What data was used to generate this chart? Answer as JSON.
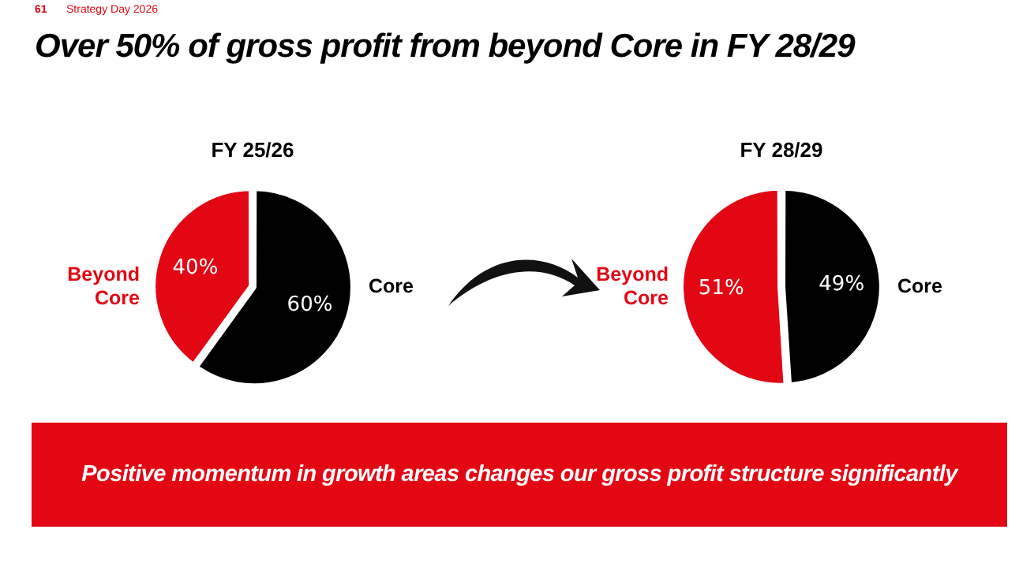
{
  "chart_data": [
    {
      "type": "pie",
      "title": "FY 25/26",
      "categories": [
        "Beyond Core",
        "Core"
      ],
      "values": [
        40,
        60
      ],
      "colors": [
        "#e30613",
        "#000000"
      ],
      "value_labels": [
        "40%",
        "60%"
      ],
      "legend": false,
      "annotations": [
        "61",
        "Strategy Day 2026",
        "Over 50% of gross profit from beyond Core  in FY 28/29",
        "Positive momentum in growth areas changes our gross profit structure significantly"
      ]
    },
    {
      "type": "pie",
      "title": "FY 28/29",
      "categories": [
        "Beyond Core",
        "Core"
      ],
      "values": [
        51,
        49
      ],
      "colors": [
        "#e30613",
        "#000000"
      ],
      "value_labels": [
        "51%",
        "49%"
      ],
      "legend": false
    }
  ]
}
